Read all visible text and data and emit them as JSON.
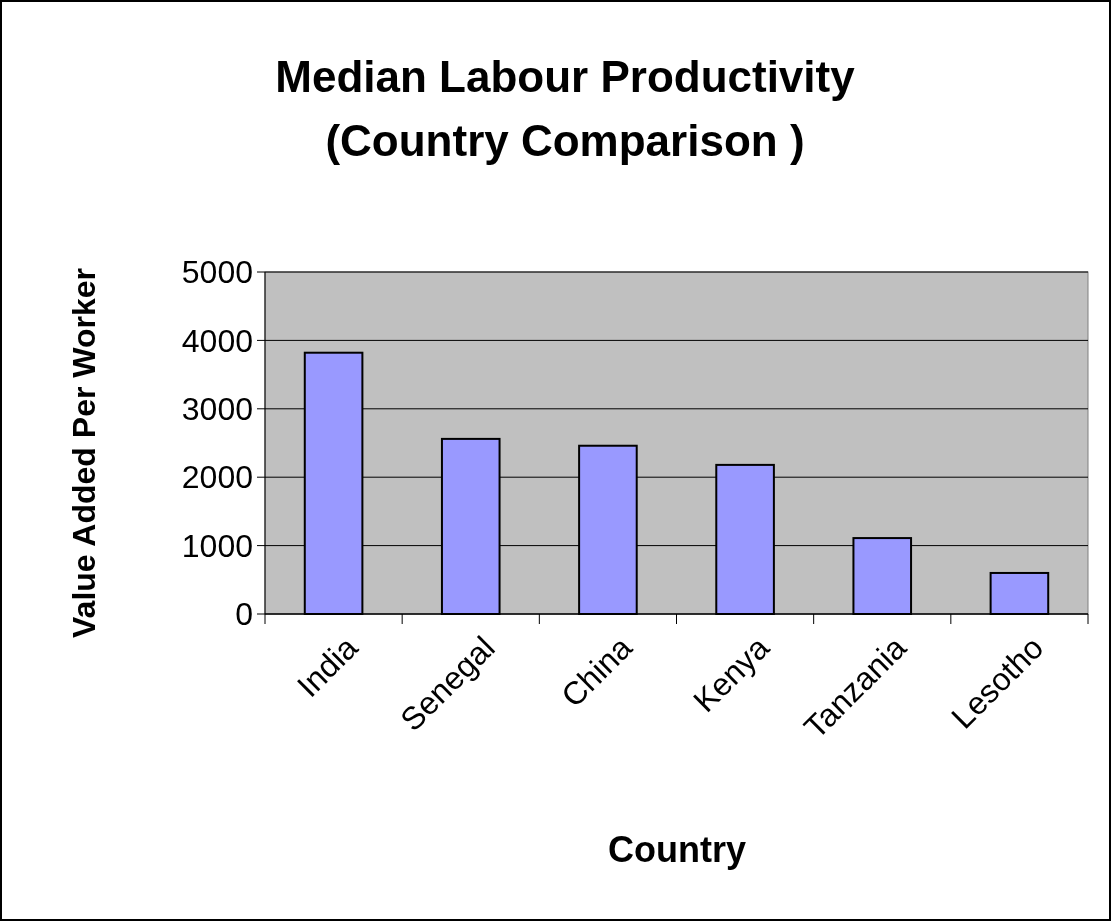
{
  "chart_data": {
    "type": "bar",
    "title": "Median Labour Productivity\n(Country Comparison )",
    "xlabel": "Country",
    "ylabel": "Value Added Per Worker",
    "categories": [
      "India",
      "Senegal",
      "China",
      "Kenya",
      "Tanzania",
      "Lesotho"
    ],
    "values": [
      3820,
      2560,
      2460,
      2180,
      1110,
      600
    ],
    "color": "#9999ff",
    "ylim": [
      0,
      5000
    ],
    "yticks": [
      0,
      1000,
      2000,
      3000,
      4000,
      5000
    ],
    "grid": "y"
  }
}
